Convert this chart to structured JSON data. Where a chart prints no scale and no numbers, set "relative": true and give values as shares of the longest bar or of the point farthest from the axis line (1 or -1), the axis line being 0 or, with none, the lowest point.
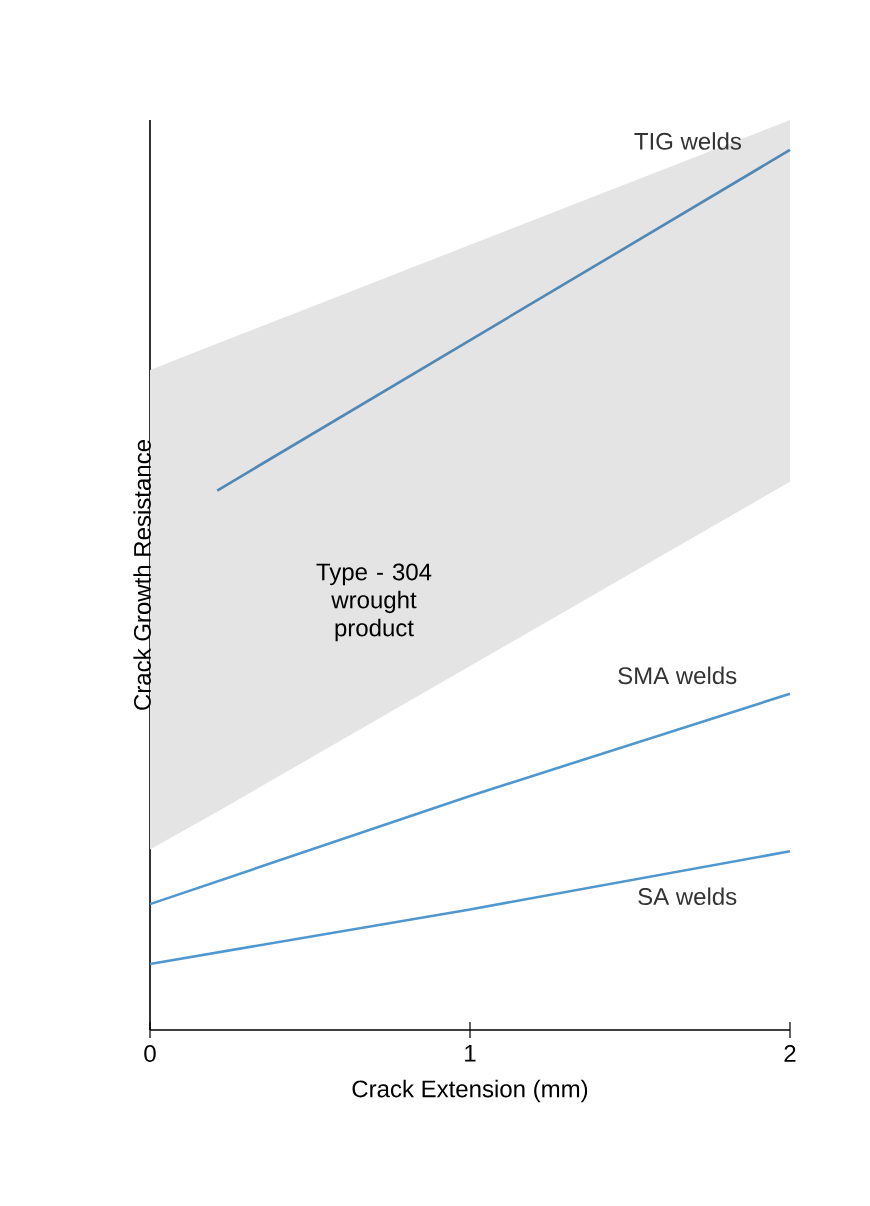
{
  "chart_data": {
    "type": "line",
    "relative": true,
    "xlabel": "Crack Extension (mm)",
    "ylabel": "Crack Growth Resistance",
    "xlim": [
      0,
      2
    ],
    "xticks": [
      0,
      1,
      2
    ],
    "series": [
      {
        "name": "TIG welds",
        "color": "#4f87b5",
        "x": [
          0,
          0.21,
          2
        ],
        "values": [
          null,
          0.613,
          1.0
        ],
        "lower": [
          0.205,
          0.248,
          0.623
        ],
        "upper": [
          0.75,
          0.78,
          1.034
        ]
      },
      {
        "name": "SMA welds",
        "color": "#4f97cf",
        "x": [
          0,
          1,
          2
        ],
        "values": [
          0.143,
          0.266,
          0.382
        ]
      },
      {
        "name": "SA welds",
        "color": "#4f97cf",
        "x": [
          0,
          1,
          2
        ],
        "values": [
          0.075,
          0.137,
          0.203
        ]
      }
    ],
    "annotations": [
      "Type - 304 wrought product"
    ]
  }
}
